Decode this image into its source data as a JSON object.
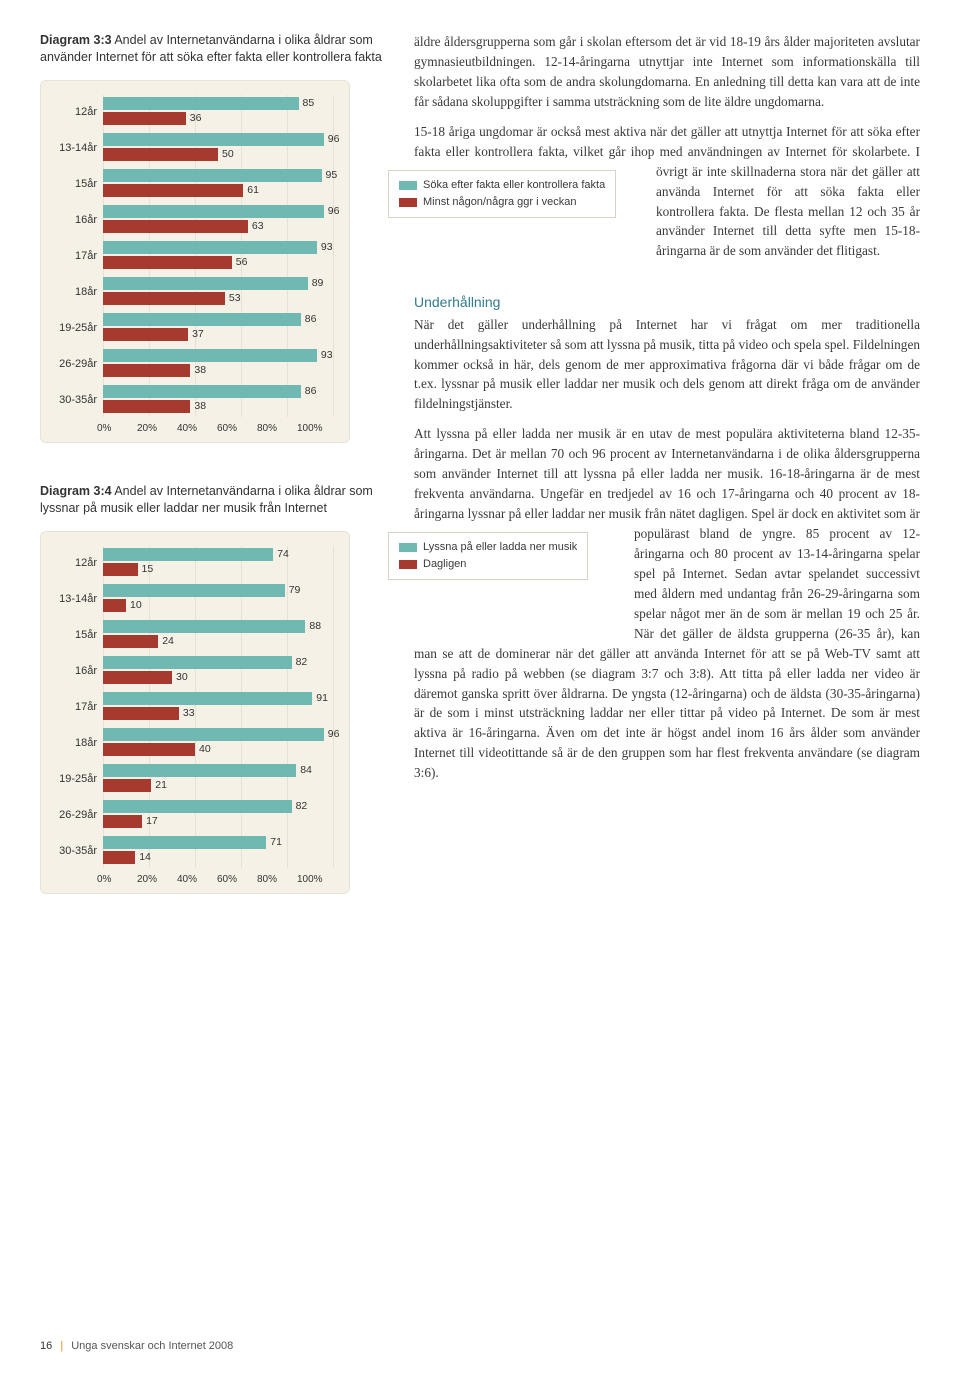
{
  "diagram33": {
    "title_b": "Diagram 3:3",
    "title_rest": " Andel av Internetanvändarna i olika åldrar som använder Internet för att söka efter fakta eller kontrollera fakta",
    "categories": [
      "12år",
      "13-14år",
      "15år",
      "16år",
      "17år",
      "18år",
      "19-25år",
      "26-29år",
      "30-35år"
    ],
    "series1_values": [
      85,
      96,
      95,
      96,
      93,
      89,
      86,
      93,
      86
    ],
    "series2_values": [
      36,
      50,
      61,
      63,
      56,
      53,
      37,
      38,
      38
    ],
    "series1_color": "#6fb9b2",
    "series2_color": "#a63a2e",
    "xticks": [
      "0%",
      "20%",
      "40%",
      "60%",
      "80%",
      "100%"
    ],
    "xmax": 100,
    "bg": "#f5f1e6",
    "legend": {
      "s1": "Söka efter fakta eller kontrollera fakta",
      "s2": "Minst någon/några ggr i veckan"
    }
  },
  "diagram34": {
    "title_b": "Diagram 3:4",
    "title_rest": " Andel av Internetanvändarna i olika åldrar som lyssnar på musik eller laddar ner musik från Internet",
    "categories": [
      "12år",
      "13-14år",
      "15år",
      "16år",
      "17år",
      "18år",
      "19-25år",
      "26-29år",
      "30-35år"
    ],
    "series1_values": [
      74,
      79,
      88,
      82,
      91,
      96,
      84,
      82,
      71
    ],
    "series2_values": [
      15,
      10,
      24,
      30,
      33,
      40,
      21,
      17,
      14
    ],
    "series1_color": "#6fb9b2",
    "series2_color": "#a63a2e",
    "xticks": [
      "0%",
      "20%",
      "40%",
      "60%",
      "80%",
      "100%"
    ],
    "xmax": 100,
    "legend": {
      "s1": "Lyssna på eller ladda ner musik",
      "s2": "Dagligen"
    }
  },
  "text": {
    "p1": "äldre åldersgrupperna som går i skolan eftersom det är vid 18-19 års ålder majoriteten avslutar gymnasieutbildningen. 12-14-åringarna utnyttjar inte Internet som informationskälla till skolarbetet lika ofta som de andra skolungdomarna. En anledning till detta kan vara att de inte får sådana skoluppgifter i samma utsträckning som de lite äldre ungdomarna.",
    "p2a": "15-18 åriga ungdomar är också mest aktiva när det gäller att utnyttja Internet för att söka efter fakta eller kontrollera fakta, vilket går ihop med användningen av Internet för skolarbete. I övrigt är ",
    "p2b": "inte skillnaderna stora när det gäller att använda Internet för att söka fakta eller kontrollera fakta. De flesta mellan 12 och 35 år använder Internet till detta syfte men 15-18-åringarna är de som använder det flitigast.",
    "h_under": "Underhållning",
    "p3": "När det gäller underhållning på Internet har vi frågat om mer traditionella underhållningsaktiviteter så som att lyssna på musik, titta på video och spela spel. Fildelningen kommer också in här, dels genom de mer approximativa frågorna där vi både frågar om de t.ex. lyssnar på musik eller laddar ner musik och dels genom att direkt fråga om de använder fildelningstjänster.",
    "p4a": "Att lyssna på eller ladda ner musik är en utav de mest populära aktiviteterna bland 12-35-åringarna. Det är mellan 70 och 96 procent av Internetanvändarna i de olika åldersgrupperna som använder Internet till att lyssna på eller ladda ner musik. 16-18-åringarna är de mest frekventa användarna. Ungefär en tredjedel av 16 och 17-åringarna och 40 procent av 18-åringarna lyssnar på eller laddar ner musik från nätet dagligen. Spel är dock en aktivitet som är populärast ",
    "p4b": "bland de yngre. 85 procent av 12-åringarna och 80 procent av 13-14-åringarna spelar spel på Internet. Sedan avtar spelandet successivt med åldern med undantag från 26-29-åringarna som spelar något mer än de som är mellan 19 och 25 ",
    "p4c": "år. När det gäller de äldsta grupperna (26-35 år), kan man se att de dominerar när det gäller att använda Internet för att se på Web-TV samt att lyssna på radio på webben (se diagram 3:7 och 3:8). Att titta på eller ladda ner video är däremot ganska spritt över åldrarna. De yngsta (12-åringarna) och de äldsta (30-35-åringarna) är de som i minst utsträckning laddar ner eller tittar på video på Internet. De som är mest aktiva är 16-åringarna. Även om det inte är högst andel inom 16 års ålder som använder Internet till videotittande så är de den gruppen som har flest frekventa användare (se diagram 3:6)."
  },
  "footer": {
    "page": "16",
    "title": "Unga svenskar och Internet 2008"
  }
}
